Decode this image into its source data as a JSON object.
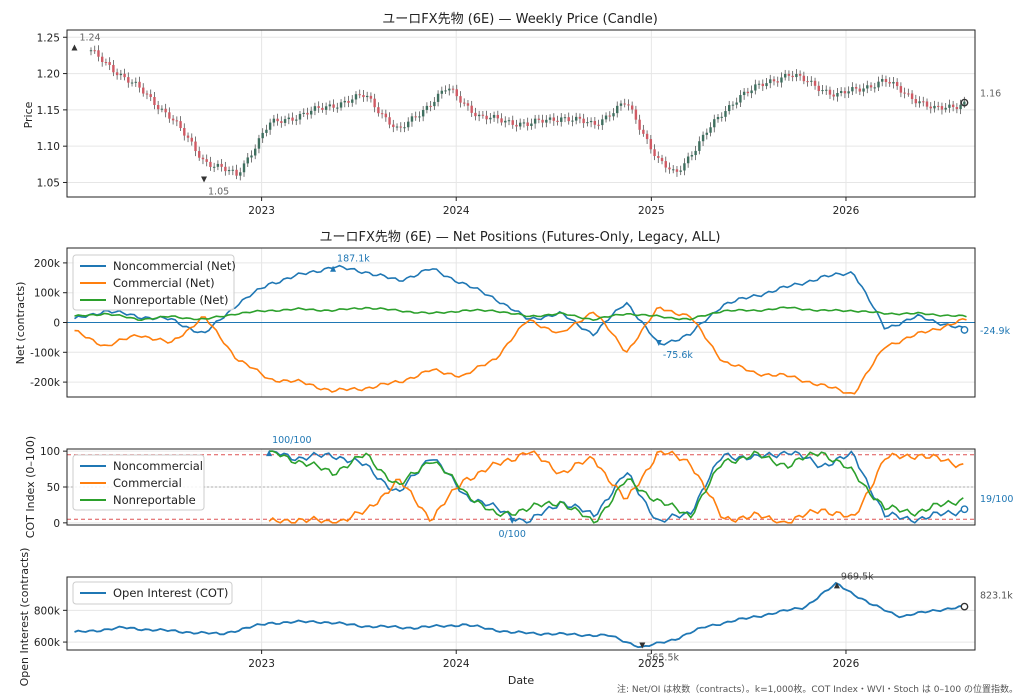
{
  "colors": {
    "noncommercial": "#1f77b4",
    "commercial": "#ff7f0e",
    "nonreportable": "#2ca02c",
    "open_interest": "#1f77b4",
    "candle_up": "#3f6f5f",
    "candle_down": "#d05a64",
    "marker": "#333333",
    "threshold": "#d62728"
  },
  "chart_data": [
    {
      "type": "candlestick",
      "title": "ユーロFX先物 (6E) — Weekly Price (Candle)",
      "ylabel": "Price",
      "ylim": [
        1.03,
        1.26
      ],
      "yticks": [
        "1.05",
        "1.10",
        "1.15",
        "1.20",
        "1.25"
      ],
      "xticks": [
        "2023",
        "2024",
        "2025",
        "2026"
      ],
      "x": [
        "2022-02",
        "2022-05",
        "2022-07",
        "2022-09",
        "2022-11",
        "2023-01",
        "2023-04",
        "2023-07",
        "2023-09",
        "2023-12",
        "2024-02",
        "2024-05",
        "2024-07",
        "2024-09",
        "2024-11",
        "2025-01",
        "2025-02",
        "2025-04",
        "2025-06",
        "2025-09",
        "2025-12",
        "2026-03",
        "2026-06",
        "2026-08"
      ],
      "close": [
        1.23,
        1.18,
        1.14,
        1.08,
        1.06,
        1.13,
        1.15,
        1.17,
        1.12,
        1.18,
        1.14,
        1.13,
        1.14,
        1.13,
        1.16,
        1.08,
        1.06,
        1.12,
        1.17,
        1.2,
        1.17,
        1.19,
        1.15,
        1.16
      ],
      "annotations": [
        {
          "label": "1.24",
          "x": "2022-01",
          "y": 1.24
        },
        {
          "label": "1.05",
          "x": "2022-09",
          "y": 1.05
        },
        {
          "label": "1.16",
          "x": "2026-08",
          "y": 1.16
        }
      ]
    },
    {
      "type": "line",
      "title": "ユーロFX先物 (6E) — Net Positions (Futures-Only, Legacy, ALL)",
      "ylabel": "Net (contracts)",
      "ylim": [
        -250,
        250
      ],
      "yticks": [
        "200k",
        "100k",
        "0",
        "-100k",
        "-200k"
      ],
      "legend": "upper-left",
      "x": [
        "2022-01",
        "2022-03",
        "2022-05",
        "2022-07",
        "2022-09",
        "2022-11",
        "2023-01",
        "2023-03",
        "2023-05",
        "2023-07",
        "2023-09",
        "2023-11",
        "2024-01",
        "2024-03",
        "2024-05",
        "2024-07",
        "2024-09",
        "2024-11",
        "2025-01",
        "2025-03",
        "2025-05",
        "2025-07",
        "2025-09",
        "2025-11",
        "2026-01",
        "2026-03",
        "2026-05",
        "2026-08"
      ],
      "series": [
        {
          "name": "Noncommercial (Net)",
          "values": [
            10,
            40,
            20,
            10,
            -40,
            60,
            130,
            160,
            187,
            170,
            140,
            180,
            130,
            80,
            10,
            30,
            -40,
            70,
            -76,
            -40,
            60,
            90,
            120,
            150,
            170,
            -20,
            20,
            -25
          ]
        },
        {
          "name": "Commercial (Net)",
          "values": [
            -30,
            -80,
            -40,
            -70,
            20,
            -120,
            -190,
            -200,
            -230,
            -220,
            -200,
            -160,
            -180,
            -120,
            10,
            -40,
            40,
            -100,
            50,
            20,
            -130,
            -170,
            -180,
            -210,
            -240,
            -80,
            -40,
            10
          ]
        },
        {
          "name": "Nonreportable (Net)",
          "values": [
            20,
            30,
            10,
            20,
            10,
            30,
            40,
            45,
            40,
            50,
            40,
            30,
            40,
            40,
            20,
            30,
            10,
            30,
            20,
            10,
            40,
            40,
            50,
            40,
            40,
            30,
            30,
            20
          ]
        }
      ],
      "annotations": [
        {
          "label": "187.1k",
          "x": "2023-05",
          "y": 187.1
        },
        {
          "label": "-75.6k",
          "x": "2025-01",
          "y": -75.6
        },
        {
          "label": "-24.9k",
          "x": "2026-08",
          "y": -24.9
        }
      ]
    },
    {
      "type": "line",
      "ylabel": "COT Index (0–100)",
      "ylim": [
        0,
        100
      ],
      "yticks": [
        "0",
        "50",
        "100"
      ],
      "threshold_lines": [
        95,
        5
      ],
      "legend": "upper-left",
      "x": [
        "2023-01",
        "2023-03",
        "2023-05",
        "2023-07",
        "2023-09",
        "2023-11",
        "2024-01",
        "2024-03",
        "2024-05",
        "2024-07",
        "2024-09",
        "2024-11",
        "2025-01",
        "2025-03",
        "2025-05",
        "2025-07",
        "2025-09",
        "2025-11",
        "2026-01",
        "2026-03",
        "2026-05",
        "2026-08"
      ],
      "series": [
        {
          "name": "Noncommercial",
          "values": [
            100,
            90,
            95,
            80,
            40,
            95,
            40,
            20,
            0,
            30,
            10,
            70,
            0,
            15,
            95,
            90,
            100,
            80,
            95,
            10,
            5,
            19
          ]
        },
        {
          "name": "Commercial",
          "values": [
            0,
            5,
            0,
            15,
            60,
            5,
            60,
            80,
            100,
            70,
            90,
            30,
            100,
            85,
            5,
            10,
            0,
            20,
            5,
            90,
            95,
            80
          ]
        },
        {
          "name": "Nonreportable",
          "values": [
            100,
            85,
            70,
            95,
            50,
            90,
            45,
            10,
            20,
            30,
            0,
            60,
            30,
            10,
            85,
            95,
            80,
            100,
            70,
            20,
            15,
            35
          ]
        }
      ],
      "annotations": [
        {
          "label": "100/100",
          "x": "2023-01",
          "y": 100
        },
        {
          "label": "0/100",
          "x": "2024-04",
          "y": 0
        },
        {
          "label": "19/100",
          "x": "2026-08",
          "y": 19
        }
      ]
    },
    {
      "type": "line",
      "ylabel": "Open Interest (contracts)",
      "xlabel": "Date",
      "ylim": [
        550,
        1010
      ],
      "yticks": [
        "800k",
        "600k"
      ],
      "xticks": [
        "2023",
        "2024",
        "2025",
        "2026"
      ],
      "legend": "upper-left",
      "x": [
        "2022-01",
        "2022-04",
        "2022-07",
        "2022-10",
        "2023-01",
        "2023-04",
        "2023-07",
        "2023-10",
        "2024-01",
        "2024-04",
        "2024-07",
        "2024-10",
        "2024-12",
        "2025-02",
        "2025-04",
        "2025-07",
        "2025-10",
        "2025-12",
        "2026-02",
        "2026-04",
        "2026-06",
        "2026-08"
      ],
      "series": [
        {
          "name": "Open Interest (COT)",
          "values": [
            660,
            690,
            670,
            650,
            720,
            730,
            700,
            690,
            710,
            660,
            650,
            640,
            565,
            620,
            700,
            760,
            820,
            969,
            840,
            760,
            800,
            823
          ]
        }
      ],
      "annotations": [
        {
          "label": "969.5k",
          "x": "2025-12",
          "y": 969.5
        },
        {
          "label": "565.5k",
          "x": "2024-12",
          "y": 565.5
        },
        {
          "label": "823.1k",
          "x": "2026-08",
          "y": 823.1
        }
      ]
    }
  ],
  "footnote": "注: Net/OI は枚数（contracts）。k=1,000枚。COT Index・WVI・Stoch は 0–100 の位置指数。"
}
